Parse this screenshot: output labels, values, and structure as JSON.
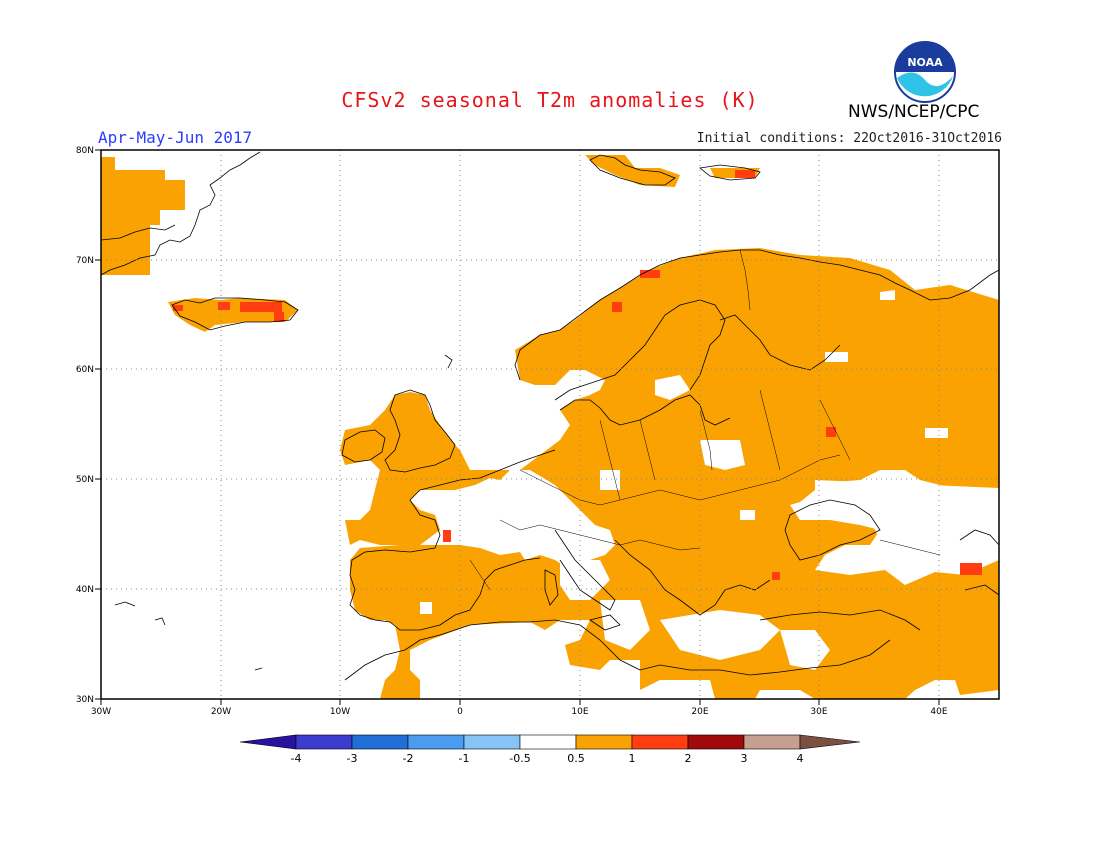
{
  "title": "CFSv2 seasonal T2m anomalies (K)",
  "period": "Apr-May-Jun 2017",
  "initial_conditions": "Initial conditions: 22Oct2016-31Oct2016",
  "agency": "NWS/NCEP/CPC",
  "logo_text": "NOAA",
  "map": {
    "lon_range": [
      -30,
      45
    ],
    "lat_range": [
      30,
      80
    ],
    "lon_ticks": [
      "30W",
      "20W",
      "10W",
      "0",
      "10E",
      "20E",
      "30E",
      "40E"
    ],
    "lat_ticks": [
      "80N",
      "70N",
      "60N",
      "50N",
      "40N",
      "30N"
    ],
    "grid": "dotted"
  },
  "colorbar": {
    "labels": [
      "-4",
      "-3",
      "-2",
      "-1",
      "-0.5",
      "0.5",
      "1",
      "2",
      "3",
      "4"
    ],
    "colors": [
      "#2a12a0",
      "#3c3cd0",
      "#1f6fd6",
      "#4a9cf0",
      "#86c4f7",
      "#ffffff",
      "#f9a202",
      "#ff3d10",
      "#a00a0a",
      "#c5a08e",
      "#7a5040"
    ]
  },
  "colors": {
    "warm": "#f9a202",
    "hot": "#ff3d10",
    "title": "#e8141c",
    "period": "#2b3cff"
  }
}
